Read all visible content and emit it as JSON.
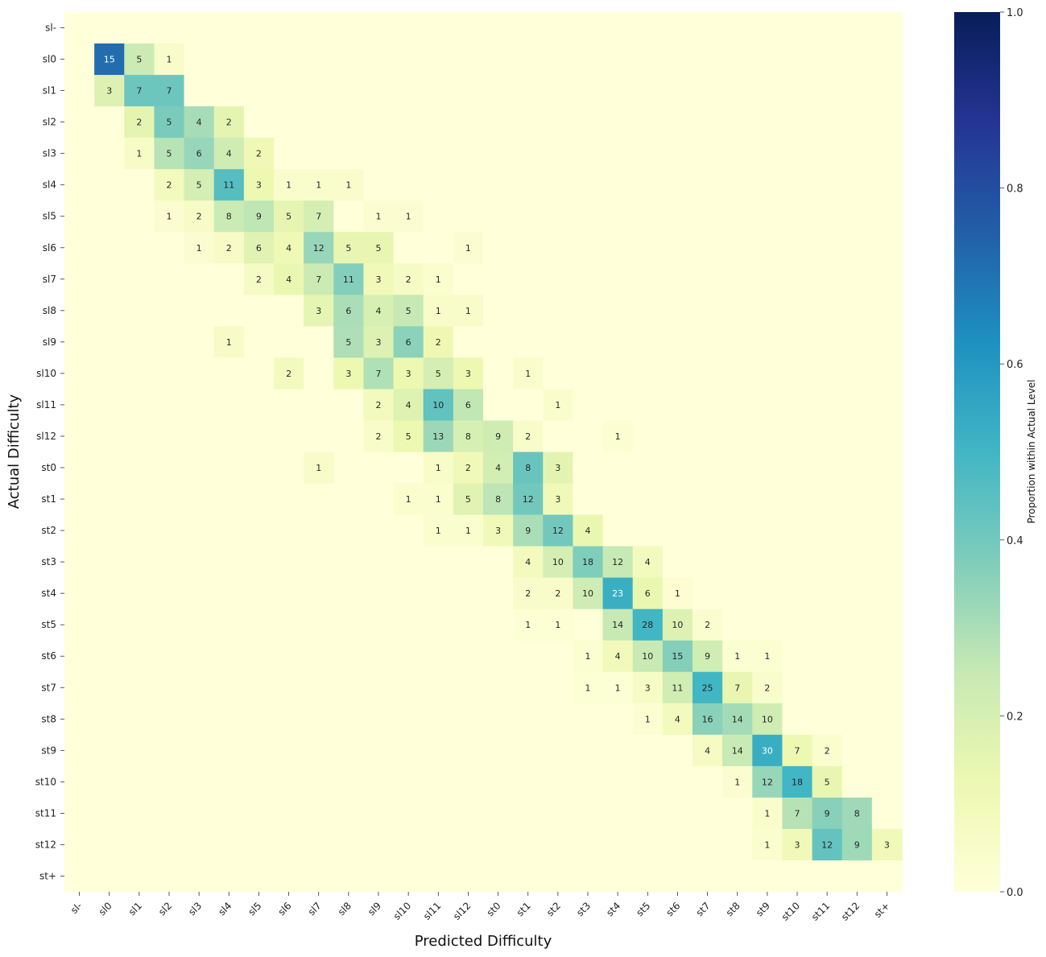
{
  "chart_data": {
    "type": "heatmap",
    "xlabel": "Predicted Difficulty",
    "ylabel": "Actual Difficulty",
    "colorbar_label": "Proportion within Actual Level",
    "colorbar_range": [
      0,
      1
    ],
    "colorbar_ticks": [
      "0.0",
      "0.2",
      "0.4",
      "0.6",
      "0.8",
      "1.0"
    ],
    "colormap": "YlGnBu",
    "x_categories": [
      "sl-",
      "sl0",
      "sl1",
      "sl2",
      "sl3",
      "sl4",
      "sl5",
      "sl6",
      "sl7",
      "sl8",
      "sl9",
      "sl10",
      "sl11",
      "sl12",
      "st0",
      "st1",
      "st2",
      "st3",
      "st4",
      "st5",
      "st6",
      "st7",
      "st8",
      "st9",
      "st10",
      "st11",
      "st12",
      "st+"
    ],
    "y_categories": [
      "sl-",
      "sl0",
      "sl1",
      "sl2",
      "sl3",
      "sl4",
      "sl5",
      "sl6",
      "sl7",
      "sl8",
      "sl9",
      "sl10",
      "sl11",
      "sl12",
      "st0",
      "st1",
      "st2",
      "st3",
      "st4",
      "st5",
      "st6",
      "st7",
      "st8",
      "st9",
      "st10",
      "st11",
      "st12",
      "st+"
    ],
    "counts": [
      [
        0,
        0,
        0,
        0,
        0,
        0,
        0,
        0,
        0,
        0,
        0,
        0,
        0,
        0,
        0,
        0,
        0,
        0,
        0,
        0,
        0,
        0,
        0,
        0,
        0,
        0,
        0,
        0
      ],
      [
        0,
        15,
        5,
        1,
        0,
        0,
        0,
        0,
        0,
        0,
        0,
        0,
        0,
        0,
        0,
        0,
        0,
        0,
        0,
        0,
        0,
        0,
        0,
        0,
        0,
        0,
        0,
        0
      ],
      [
        0,
        3,
        7,
        7,
        0,
        0,
        0,
        0,
        0,
        0,
        0,
        0,
        0,
        0,
        0,
        0,
        0,
        0,
        0,
        0,
        0,
        0,
        0,
        0,
        0,
        0,
        0,
        0
      ],
      [
        0,
        0,
        2,
        5,
        4,
        2,
        0,
        0,
        0,
        0,
        0,
        0,
        0,
        0,
        0,
        0,
        0,
        0,
        0,
        0,
        0,
        0,
        0,
        0,
        0,
        0,
        0,
        0
      ],
      [
        0,
        0,
        1,
        5,
        6,
        4,
        2,
        0,
        0,
        0,
        0,
        0,
        0,
        0,
        0,
        0,
        0,
        0,
        0,
        0,
        0,
        0,
        0,
        0,
        0,
        0,
        0,
        0
      ],
      [
        0,
        0,
        0,
        2,
        5,
        11,
        3,
        1,
        1,
        1,
        0,
        0,
        0,
        0,
        0,
        0,
        0,
        0,
        0,
        0,
        0,
        0,
        0,
        0,
        0,
        0,
        0,
        0
      ],
      [
        0,
        0,
        0,
        1,
        2,
        8,
        9,
        5,
        7,
        0,
        1,
        1,
        0,
        0,
        0,
        0,
        0,
        0,
        0,
        0,
        0,
        0,
        0,
        0,
        0,
        0,
        0,
        0
      ],
      [
        0,
        0,
        0,
        0,
        1,
        2,
        6,
        4,
        12,
        5,
        5,
        0,
        0,
        1,
        0,
        0,
        0,
        0,
        0,
        0,
        0,
        0,
        0,
        0,
        0,
        0,
        0,
        0
      ],
      [
        0,
        0,
        0,
        0,
        0,
        0,
        2,
        4,
        7,
        11,
        3,
        2,
        1,
        0,
        0,
        0,
        0,
        0,
        0,
        0,
        0,
        0,
        0,
        0,
        0,
        0,
        0,
        0
      ],
      [
        0,
        0,
        0,
        0,
        0,
        0,
        0,
        0,
        3,
        6,
        4,
        5,
        1,
        1,
        0,
        0,
        0,
        0,
        0,
        0,
        0,
        0,
        0,
        0,
        0,
        0,
        0,
        0
      ],
      [
        0,
        0,
        0,
        0,
        0,
        1,
        0,
        0,
        0,
        5,
        3,
        6,
        2,
        0,
        0,
        0,
        0,
        0,
        0,
        0,
        0,
        0,
        0,
        0,
        0,
        0,
        0,
        0
      ],
      [
        0,
        0,
        0,
        0,
        0,
        0,
        0,
        2,
        0,
        3,
        7,
        3,
        5,
        3,
        0,
        1,
        0,
        0,
        0,
        0,
        0,
        0,
        0,
        0,
        0,
        0,
        0,
        0
      ],
      [
        0,
        0,
        0,
        0,
        0,
        0,
        0,
        0,
        0,
        0,
        2,
        4,
        10,
        6,
        0,
        0,
        1,
        0,
        0,
        0,
        0,
        0,
        0,
        0,
        0,
        0,
        0,
        0
      ],
      [
        0,
        0,
        0,
        0,
        0,
        0,
        0,
        0,
        0,
        0,
        2,
        5,
        13,
        8,
        9,
        2,
        0,
        0,
        1,
        0,
        0,
        0,
        0,
        0,
        0,
        0,
        0,
        0
      ],
      [
        0,
        0,
        0,
        0,
        0,
        0,
        0,
        0,
        1,
        0,
        0,
        0,
        1,
        2,
        4,
        8,
        3,
        0,
        0,
        0,
        0,
        0,
        0,
        0,
        0,
        0,
        0,
        0
      ],
      [
        0,
        0,
        0,
        0,
        0,
        0,
        0,
        0,
        0,
        0,
        0,
        1,
        1,
        5,
        8,
        12,
        3,
        0,
        0,
        0,
        0,
        0,
        0,
        0,
        0,
        0,
        0,
        0
      ],
      [
        0,
        0,
        0,
        0,
        0,
        0,
        0,
        0,
        0,
        0,
        0,
        0,
        1,
        1,
        3,
        9,
        12,
        4,
        0,
        0,
        0,
        0,
        0,
        0,
        0,
        0,
        0,
        0
      ],
      [
        0,
        0,
        0,
        0,
        0,
        0,
        0,
        0,
        0,
        0,
        0,
        0,
        0,
        0,
        0,
        4,
        10,
        18,
        12,
        4,
        0,
        0,
        0,
        0,
        0,
        0,
        0,
        0
      ],
      [
        0,
        0,
        0,
        0,
        0,
        0,
        0,
        0,
        0,
        0,
        0,
        0,
        0,
        0,
        0,
        2,
        2,
        10,
        23,
        6,
        1,
        0,
        0,
        0,
        0,
        0,
        0,
        0
      ],
      [
        0,
        0,
        0,
        0,
        0,
        0,
        0,
        0,
        0,
        0,
        0,
        0,
        0,
        0,
        0,
        1,
        1,
        0,
        14,
        28,
        10,
        2,
        0,
        0,
        0,
        0,
        0,
        0
      ],
      [
        0,
        0,
        0,
        0,
        0,
        0,
        0,
        0,
        0,
        0,
        0,
        0,
        0,
        0,
        0,
        0,
        0,
        1,
        4,
        10,
        15,
        9,
        1,
        1,
        0,
        0,
        0,
        0
      ],
      [
        0,
        0,
        0,
        0,
        0,
        0,
        0,
        0,
        0,
        0,
        0,
        0,
        0,
        0,
        0,
        0,
        0,
        1,
        1,
        3,
        11,
        25,
        7,
        2,
        0,
        0,
        0,
        0
      ],
      [
        0,
        0,
        0,
        0,
        0,
        0,
        0,
        0,
        0,
        0,
        0,
        0,
        0,
        0,
        0,
        0,
        0,
        0,
        0,
        1,
        4,
        16,
        14,
        10,
        0,
        0,
        0,
        0
      ],
      [
        0,
        0,
        0,
        0,
        0,
        0,
        0,
        0,
        0,
        0,
        0,
        0,
        0,
        0,
        0,
        0,
        0,
        0,
        0,
        0,
        0,
        4,
        14,
        30,
        7,
        2,
        0,
        0
      ],
      [
        0,
        0,
        0,
        0,
        0,
        0,
        0,
        0,
        0,
        0,
        0,
        0,
        0,
        0,
        0,
        0,
        0,
        0,
        0,
        0,
        0,
        0,
        1,
        12,
        18,
        5,
        0,
        0
      ],
      [
        0,
        0,
        0,
        0,
        0,
        0,
        0,
        0,
        0,
        0,
        0,
        0,
        0,
        0,
        0,
        0,
        0,
        0,
        0,
        0,
        0,
        0,
        0,
        1,
        7,
        9,
        8,
        0
      ],
      [
        0,
        0,
        0,
        0,
        0,
        0,
        0,
        0,
        0,
        0,
        0,
        0,
        0,
        0,
        0,
        0,
        0,
        0,
        0,
        0,
        0,
        0,
        0,
        1,
        3,
        12,
        9,
        3
      ],
      [
        0,
        0,
        0,
        0,
        0,
        0,
        0,
        0,
        0,
        0,
        0,
        0,
        0,
        0,
        0,
        0,
        0,
        0,
        0,
        0,
        0,
        0,
        0,
        0,
        0,
        0,
        0,
        0
      ]
    ]
  }
}
